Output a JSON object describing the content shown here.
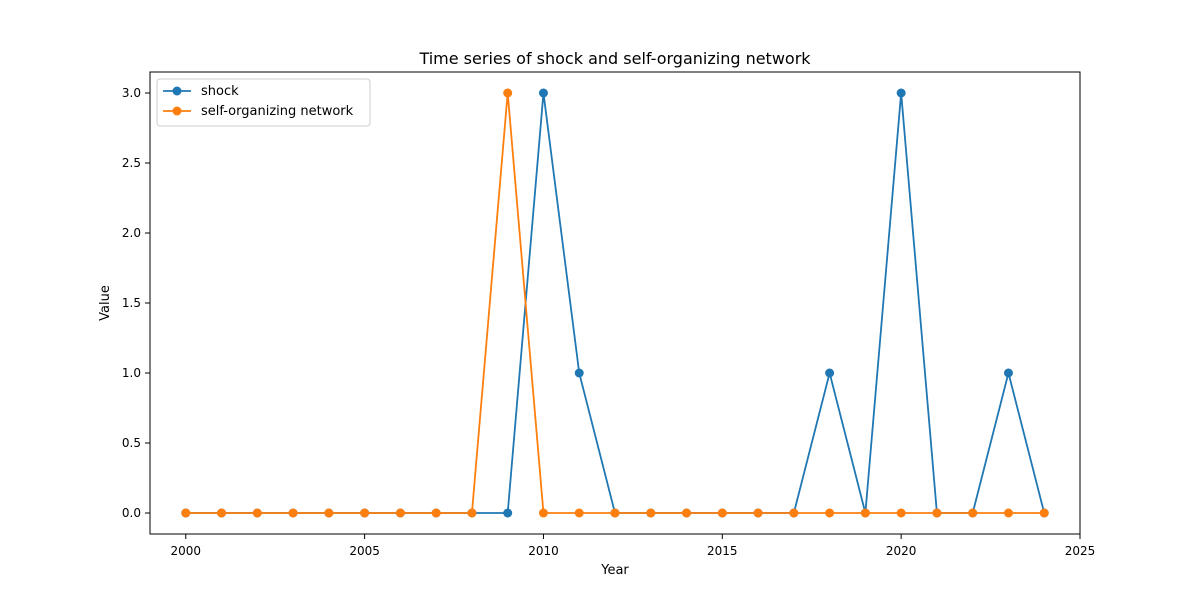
{
  "chart_data": {
    "type": "line",
    "title": "Time series of shock and self-organizing network",
    "xlabel": "Year",
    "ylabel": "Value",
    "xlim": [
      1999.0,
      2025.0
    ],
    "ylim": [
      -0.15,
      3.15
    ],
    "xticks": [
      2000,
      2005,
      2010,
      2015,
      2020,
      2025
    ],
    "yticks": [
      0.0,
      0.5,
      1.0,
      1.5,
      2.0,
      2.5,
      3.0
    ],
    "grid": false,
    "legend_position": "top-left",
    "x": [
      2000,
      2001,
      2002,
      2003,
      2004,
      2005,
      2006,
      2007,
      2008,
      2009,
      2010,
      2011,
      2012,
      2013,
      2014,
      2015,
      2016,
      2017,
      2018,
      2019,
      2020,
      2021,
      2022,
      2023,
      2024
    ],
    "series": [
      {
        "name": "shock",
        "color": "#1f77b4",
        "values": [
          0,
          0,
          0,
          0,
          0,
          0,
          0,
          0,
          0,
          0,
          3,
          1,
          0,
          0,
          0,
          0,
          0,
          0,
          1,
          0,
          3,
          0,
          0,
          1,
          0
        ]
      },
      {
        "name": "self-organizing network",
        "color": "#ff7f0e",
        "values": [
          0,
          0,
          0,
          0,
          0,
          0,
          0,
          0,
          0,
          3,
          0,
          0,
          0,
          0,
          0,
          0,
          0,
          0,
          0,
          0,
          0,
          0,
          0,
          0,
          0
        ]
      }
    ]
  }
}
